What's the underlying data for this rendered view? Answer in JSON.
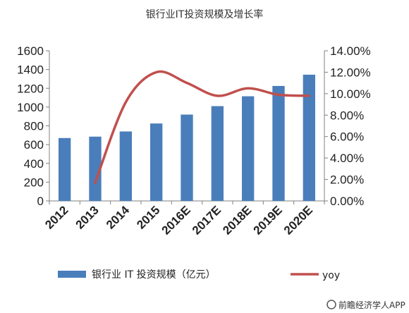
{
  "chart_data": {
    "type": "bar",
    "title": "银行业IT投资规模及增长率",
    "categories": [
      "2012",
      "2013",
      "2014",
      "2015",
      "2016E",
      "2017E",
      "2018E",
      "2019E",
      "2020E"
    ],
    "series": [
      {
        "name": "银行业 IT 投资规模（亿元）",
        "type": "bar",
        "axis": "left",
        "color": "#4a7ebb",
        "values": [
          670,
          685,
          740,
          825,
          920,
          1010,
          1115,
          1225,
          1345
        ]
      },
      {
        "name": "yoy",
        "type": "line",
        "axis": "right",
        "color": "#c0504d",
        "values": [
          null,
          1.7,
          9.2,
          12.0,
          11.0,
          9.8,
          10.5,
          9.9,
          9.8
        ]
      }
    ],
    "left_axis": {
      "min": 0,
      "max": 1600,
      "step": 200,
      "ticks": [
        "0",
        "200",
        "400",
        "600",
        "800",
        "1000",
        "1200",
        "1400",
        "1600"
      ]
    },
    "right_axis": {
      "min": 0,
      "max": 14,
      "step": 2,
      "ticks": [
        "0.00%",
        "2.00%",
        "4.00%",
        "6.00%",
        "8.00%",
        "10.00%",
        "12.00%",
        "14.00%"
      ]
    },
    "grid": false,
    "legend_position": "bottom"
  },
  "watermark": {
    "source": "前瞻经济学人APP"
  }
}
